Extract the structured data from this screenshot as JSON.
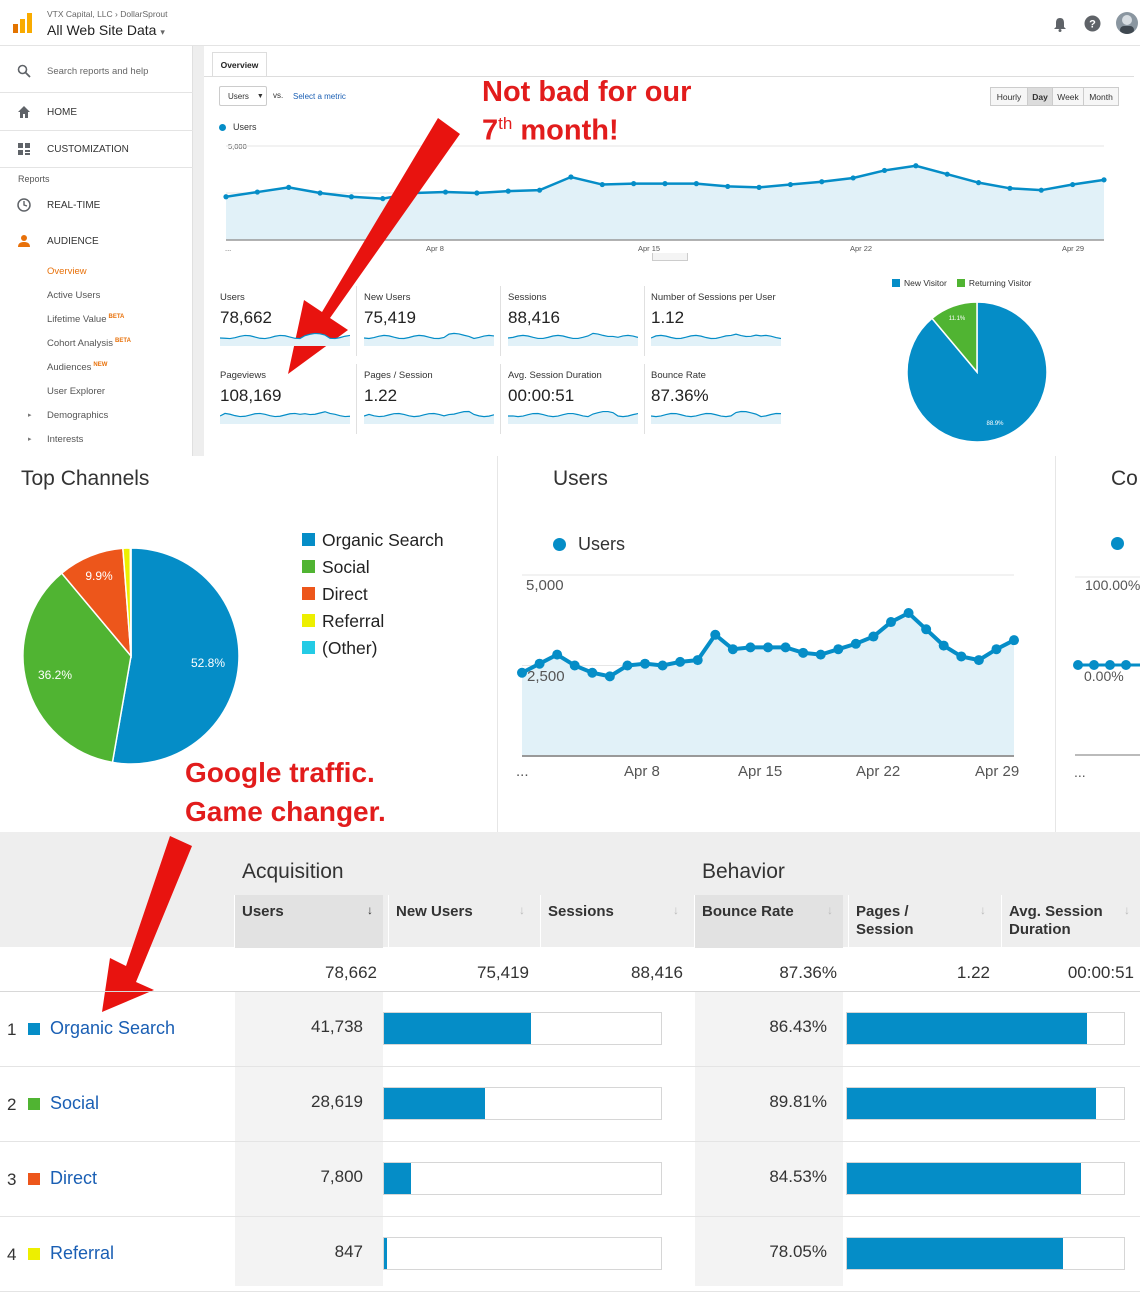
{
  "header": {
    "breadcrumb_account": "VTX Capital, LLC",
    "breadcrumb_sep": "›",
    "breadcrumb_property": "DollarSprout",
    "view_name": "All Web Site Data",
    "view_caret": "▾"
  },
  "sidebar": {
    "search_placeholder": "Search reports and help",
    "home": "HOME",
    "customization": "CUSTOMIZATION",
    "reports_heading": "Reports",
    "realtime": "REAL-TIME",
    "audience": "AUDIENCE",
    "sub_items": [
      {
        "label": "Overview",
        "badge": ""
      },
      {
        "label": "Active Users",
        "badge": ""
      },
      {
        "label": "Lifetime Value",
        "badge": "BETA"
      },
      {
        "label": "Cohort Analysis",
        "badge": "BETA"
      },
      {
        "label": "Audiences",
        "badge": "NEW"
      },
      {
        "label": "User Explorer",
        "badge": ""
      },
      {
        "label": "Demographics",
        "badge": ""
      },
      {
        "label": "Interests",
        "badge": ""
      }
    ]
  },
  "overview": {
    "tab": "Overview",
    "metric_select": "Users",
    "vs": "vs.",
    "select_metric": "Select a metric",
    "granularity": [
      "Hourly",
      "Day",
      "Week",
      "Month"
    ],
    "granularity_active": "Day",
    "legend": "Users",
    "y_top": "5,000",
    "y_mid": "2,500",
    "x_labels": [
      "...",
      "Apr 8",
      "Apr 15",
      "Apr 22",
      "Apr 29"
    ],
    "metrics": [
      {
        "label": "Users",
        "value": "78,662"
      },
      {
        "label": "New Users",
        "value": "75,419"
      },
      {
        "label": "Sessions",
        "value": "88,416"
      },
      {
        "label": "Number of Sessions per User",
        "value": "1.12"
      },
      {
        "label": "Pageviews",
        "value": "108,169"
      },
      {
        "label": "Pages / Session",
        "value": "1.22"
      },
      {
        "label": "Avg. Session Duration",
        "value": "00:00:51"
      },
      {
        "label": "Bounce Rate",
        "value": "87.36%"
      }
    ],
    "visitor_legend": [
      "New Visitor",
      "Returning Visitor"
    ],
    "visitor_pie": {
      "new_pct": 88.9,
      "returning_pct": 11.1,
      "new_label": "88.9%",
      "returning_label": "11.1%"
    },
    "colors": {
      "blue": "#058dc7",
      "green": "#50b432"
    }
  },
  "top_channels": {
    "title": "Top Channels",
    "legend": [
      {
        "name": "Organic Search",
        "color": "#058dc7"
      },
      {
        "name": "Social",
        "color": "#50b432"
      },
      {
        "name": "Direct",
        "color": "#ed561b"
      },
      {
        "name": "Referral",
        "color": "#edef00"
      },
      {
        "name": "(Other)",
        "color": "#24cbe5"
      }
    ],
    "labels": {
      "organic": "52.8%",
      "social": "36.2%",
      "direct": "9.9%"
    }
  },
  "users_chart": {
    "title": "Users",
    "legend": "Users",
    "y_top": "5,000",
    "y_mid": "2,500",
    "x_labels": [
      "...",
      "Apr 8",
      "Apr 15",
      "Apr 22",
      "Apr 29"
    ]
  },
  "conv_chart": {
    "title": "Co",
    "y_top": "100.00%",
    "y_mid": "0.00%",
    "x_start": "..."
  },
  "chart_data": [
    {
      "type": "line",
      "title": "Users",
      "x": [
        "Apr 2",
        "Apr 3",
        "Apr 4",
        "Apr 5",
        "Apr 6",
        "Apr 7",
        "Apr 8",
        "Apr 9",
        "Apr 10",
        "Apr 11",
        "Apr 12",
        "Apr 13",
        "Apr 14",
        "Apr 15",
        "Apr 16",
        "Apr 17",
        "Apr 18",
        "Apr 19",
        "Apr 20",
        "Apr 21",
        "Apr 22",
        "Apr 23",
        "Apr 24",
        "Apr 25",
        "Apr 26",
        "Apr 27",
        "Apr 28",
        "Apr 29",
        "Apr 30"
      ],
      "series": [
        {
          "name": "Users",
          "values": [
            2300,
            2550,
            2800,
            2500,
            2300,
            2200,
            2500,
            2550,
            2500,
            2600,
            2650,
            3350,
            2950,
            3000,
            3000,
            3000,
            2850,
            2800,
            2950,
            3100,
            3300,
            3700,
            3950,
            3500,
            3050,
            2750,
            2650,
            2950,
            3200
          ]
        }
      ],
      "ylim": [
        0,
        5000
      ]
    },
    {
      "type": "pie",
      "title": "Top Channels",
      "categories": [
        "Organic Search",
        "Social",
        "Direct",
        "Referral",
        "(Other)"
      ],
      "values": [
        52.8,
        36.2,
        9.9,
        1.1,
        0.1
      ]
    },
    {
      "type": "pie",
      "categories": [
        "New Visitor",
        "Returning Visitor"
      ],
      "values": [
        88.9,
        11.1
      ]
    }
  ],
  "table": {
    "group_acq": "Acquisition",
    "group_beh": "Behavior",
    "cols": [
      "Users",
      "New Users",
      "Sessions",
      "Bounce Rate",
      "Pages / Session",
      "Avg. Session Duration"
    ],
    "sort_arrow": "↓",
    "totals": [
      "78,662",
      "75,419",
      "88,416",
      "87.36%",
      "1.22",
      "00:00:51"
    ],
    "rows": [
      {
        "rank": "1",
        "name": "Organic Search",
        "color": "#058dc7",
        "users": "41,738",
        "users_frac": 0.53,
        "bounce": "86.43%",
        "bounce_frac": 0.865
      },
      {
        "rank": "2",
        "name": "Social",
        "color": "#50b432",
        "users": "28,619",
        "users_frac": 0.364,
        "bounce": "89.81%",
        "bounce_frac": 0.898
      },
      {
        "rank": "3",
        "name": "Direct",
        "color": "#ed561b",
        "users": "7,800",
        "users_frac": 0.099,
        "bounce": "84.53%",
        "bounce_frac": 0.845
      },
      {
        "rank": "4",
        "name": "Referral",
        "color": "#edef00",
        "users": "847",
        "users_frac": 0.011,
        "bounce": "78.05%",
        "bounce_frac": 0.78
      }
    ]
  },
  "annotations": {
    "top_line1": "Not bad for our",
    "top_line2_num": "7",
    "top_line2_sup": "th",
    "top_line2_rest": " month!",
    "mid_line1": "Google traffic.",
    "mid_line2": "Game changer."
  }
}
